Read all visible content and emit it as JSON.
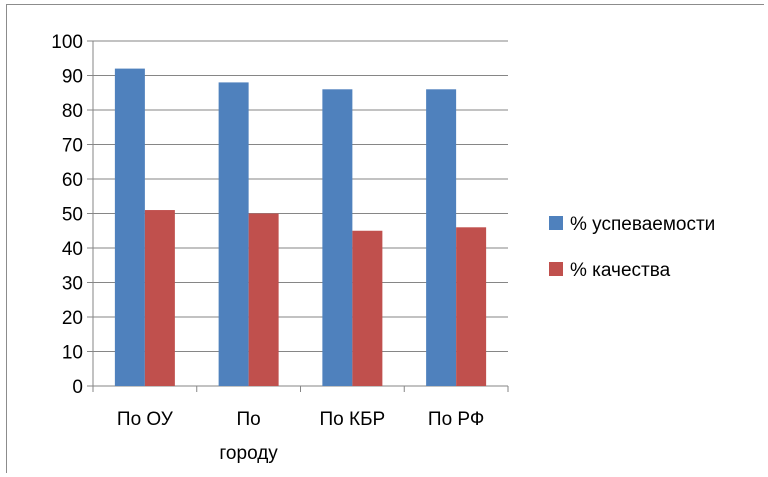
{
  "chart_data": {
    "type": "bar",
    "categories": [
      "По ОУ",
      "По городу",
      "По КБР",
      "По РФ"
    ],
    "category_lines": [
      [
        "По ОУ"
      ],
      [
        "По",
        "городу"
      ],
      [
        "По КБР"
      ],
      [
        "По РФ"
      ]
    ],
    "series": [
      {
        "name": "% успеваемости",
        "values": [
          92,
          88,
          86,
          86
        ],
        "color": "#4F81BD"
      },
      {
        "name": "% качества",
        "values": [
          51,
          50,
          45,
          46
        ],
        "color": "#C0504D"
      }
    ],
    "ylim": [
      0,
      100
    ],
    "yticks": [
      "0",
      "10",
      "20",
      "30",
      "40",
      "50",
      "60",
      "70",
      "80",
      "90",
      "100"
    ],
    "grid": true,
    "legend_position": "right"
  }
}
